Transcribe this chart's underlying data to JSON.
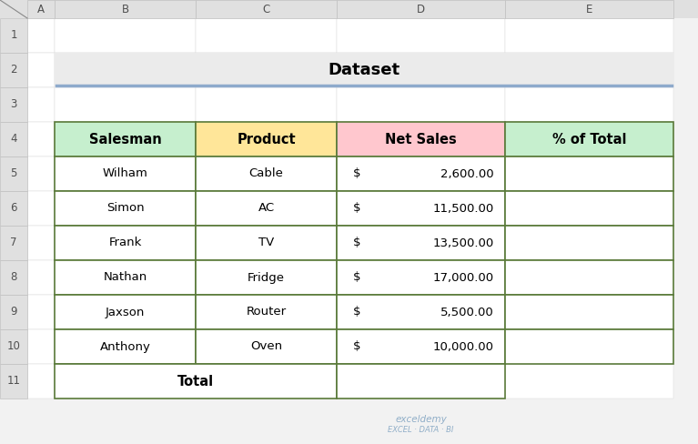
{
  "title": "Dataset",
  "title_underline_color": "#8eaacc",
  "bg_color": "#f2f2f2",
  "cell_bg": "#ffffff",
  "col_header_bg": "#e0e0e0",
  "col_header_fg": "#505050",
  "row_header_bg": "#e0e0e0",
  "row_header_fg": "#505050",
  "col_labels": [
    "A",
    "B",
    "C",
    "D",
    "E"
  ],
  "row_labels": [
    "1",
    "2",
    "3",
    "4",
    "5",
    "6",
    "7",
    "8",
    "9",
    "10",
    "11"
  ],
  "table_headers": [
    "Salesman",
    "Product",
    "Net Sales",
    "% of Total"
  ],
  "header_bg_colors": [
    "#c6efce",
    "#ffe699",
    "#ffc7ce",
    "#c6efce"
  ],
  "header_border_color": "#5a7a3a",
  "data_rows": [
    [
      "Wilham",
      "Cable",
      "$",
      "2,600.00"
    ],
    [
      "Simon",
      "AC",
      "$",
      "11,500.00"
    ],
    [
      "Frank",
      "TV",
      "$",
      "13,500.00"
    ],
    [
      "Nathan",
      "Fridge",
      "$",
      "17,000.00"
    ],
    [
      "Jaxson",
      "Router",
      "$",
      "5,500.00"
    ],
    [
      "Anthony",
      "Oven",
      "$",
      "10,000.00"
    ]
  ],
  "total_label": "Total",
  "watermark_line1": "exceldemy",
  "watermark_line2": "EXCEL · DATA · BI",
  "data_border_color": "#5a7a3a",
  "font_size": 9.5,
  "header_font_size": 10.5
}
